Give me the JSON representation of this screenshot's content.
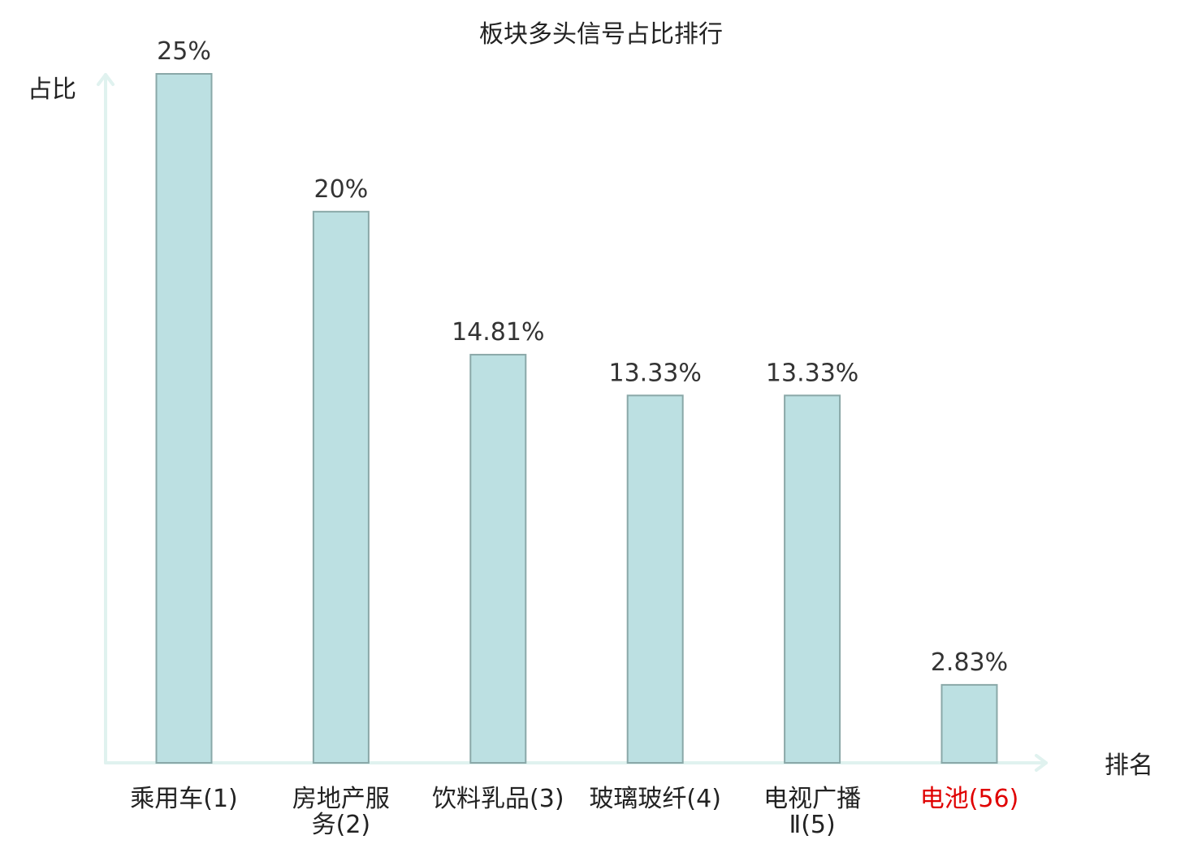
{
  "chart_data": {
    "type": "bar",
    "title": "板块多头信号占比排行",
    "ylabel": "占比",
    "xlabel": "排名",
    "categories": [
      [
        "乘用车(1)"
      ],
      [
        "房地产服",
        "务(2)"
      ],
      [
        "饮料乳品(3)"
      ],
      [
        "玻璃玻纤(4)"
      ],
      [
        "电视广播",
        "Ⅱ(5)"
      ],
      [
        "电池(56)"
      ]
    ],
    "values": [
      25,
      20,
      14.81,
      13.33,
      13.33,
      2.83
    ],
    "value_labels": [
      "25%",
      "20%",
      "14.81%",
      "13.33%",
      "13.33%",
      "2.83%"
    ],
    "highlight_index": 5,
    "ylim": [
      0,
      25
    ],
    "grid": false,
    "legend": "none",
    "colors": {
      "bar_fill": "#bce0e2",
      "bar_stroke": "#8aa8a8",
      "axis": "#e0f2ef",
      "highlight_text": "#e00000"
    }
  }
}
